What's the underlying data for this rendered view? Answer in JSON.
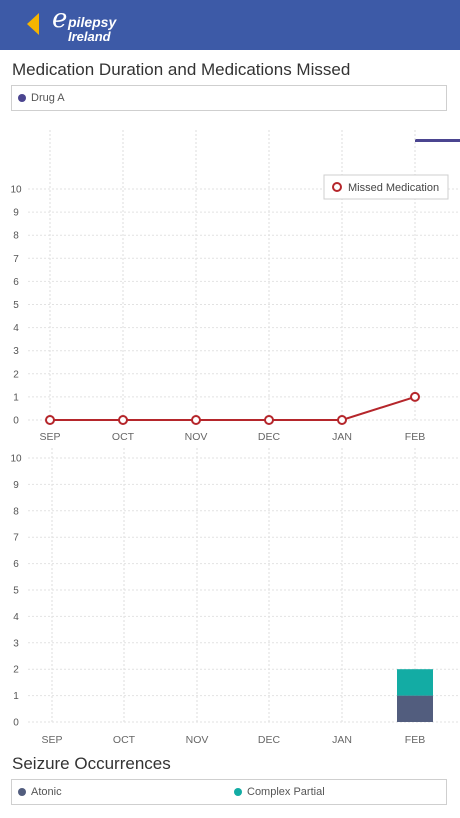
{
  "header": {
    "logo_line1": "pilepsy",
    "logo_line2": "Ireland",
    "logo_initial": "e",
    "brand_color": "#3d5aa7",
    "back_icon_color": "#f5b400"
  },
  "medication_section": {
    "title": "Medication Duration and Medications Missed",
    "legend": [
      {
        "label": "Drug A",
        "color": "#4b4590"
      }
    ]
  },
  "seizure_section": {
    "title": "Seizure Occurrences",
    "legend": [
      {
        "label": "Atonic",
        "color": "#525d7e"
      },
      {
        "label": "Complex Partial",
        "color": "#13aca4"
      }
    ]
  },
  "chart_data": [
    {
      "type": "line",
      "categories": [
        "SEP",
        "OCT",
        "NOV",
        "DEC",
        "JAN",
        "FEB"
      ],
      "series": [
        {
          "name": "Missed Medication",
          "values": [
            0,
            0,
            0,
            0,
            0,
            1
          ],
          "color": "#b5262b"
        }
      ],
      "ylim": [
        0,
        10
      ],
      "yticks": [
        0,
        1,
        2,
        3,
        4,
        5,
        6,
        7,
        8,
        9,
        10
      ],
      "legend_position": "top-right",
      "grid": true
    },
    {
      "type": "bar",
      "stacked": true,
      "categories": [
        "SEP",
        "OCT",
        "NOV",
        "DEC",
        "JAN",
        "FEB"
      ],
      "series": [
        {
          "name": "Atonic",
          "values": [
            0,
            0,
            0,
            0,
            0,
            1
          ],
          "color": "#525d7e"
        },
        {
          "name": "Complex Partial",
          "values": [
            0,
            0,
            0,
            0,
            0,
            1
          ],
          "color": "#13aca4"
        }
      ],
      "ylim": [
        0,
        10
      ],
      "yticks": [
        0,
        1,
        2,
        3,
        4,
        5,
        6,
        7,
        8,
        9,
        10
      ],
      "grid": true
    }
  ]
}
